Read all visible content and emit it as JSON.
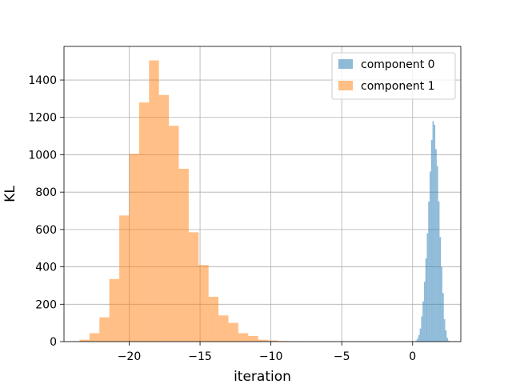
{
  "chart_data": {
    "type": "bar",
    "title": "",
    "xlabel": "iteration",
    "ylabel": "KL",
    "xlim": [
      -24.6,
      3.4
    ],
    "ylim": [
      0,
      1580
    ],
    "grid": true,
    "legend_position": "top-right",
    "xticks": [
      -20,
      -15,
      -10,
      -5,
      0
    ],
    "xtick_labels": [
      "−20",
      "−15",
      "−10",
      "−5",
      "0"
    ],
    "yticks": [
      0,
      200,
      400,
      600,
      800,
      1000,
      1200,
      1400
    ],
    "ytick_labels": [
      "0",
      "200",
      "400",
      "600",
      "800",
      "1000",
      "1200",
      "1400"
    ],
    "series": [
      {
        "name": "component 0",
        "color": "#1f77b4",
        "opacity": 0.5,
        "bins": [
          [
            0.2,
            0.3,
            5
          ],
          [
            0.3,
            0.4,
            15
          ],
          [
            0.4,
            0.5,
            35
          ],
          [
            0.5,
            0.6,
            70
          ],
          [
            0.6,
            0.7,
            135
          ],
          [
            0.7,
            0.8,
            215
          ],
          [
            0.8,
            0.9,
            320
          ],
          [
            0.9,
            1.0,
            445
          ],
          [
            1.0,
            1.1,
            580
          ],
          [
            1.1,
            1.2,
            750
          ],
          [
            1.2,
            1.3,
            910
          ],
          [
            1.3,
            1.4,
            1080
          ],
          [
            1.4,
            1.5,
            1180
          ],
          [
            1.5,
            1.6,
            1160
          ],
          [
            1.6,
            1.7,
            1030
          ],
          [
            1.7,
            1.8,
            940
          ],
          [
            1.8,
            1.9,
            750
          ],
          [
            1.9,
            2.0,
            560
          ],
          [
            2.0,
            2.1,
            400
          ],
          [
            2.1,
            2.2,
            260
          ],
          [
            2.2,
            2.3,
            120
          ],
          [
            2.3,
            2.4,
            60
          ],
          [
            2.4,
            2.5,
            20
          ],
          [
            2.5,
            2.6,
            5
          ]
        ]
      },
      {
        "name": "component 1",
        "color": "#ff7f0e",
        "opacity": 0.5,
        "bins": [
          [
            -23.5,
            -22.8,
            10
          ],
          [
            -22.8,
            -22.1,
            45
          ],
          [
            -22.1,
            -21.4,
            130
          ],
          [
            -21.4,
            -20.7,
            335
          ],
          [
            -20.7,
            -20.0,
            675
          ],
          [
            -20.0,
            -19.3,
            1005
          ],
          [
            -19.3,
            -18.6,
            1280
          ],
          [
            -18.6,
            -17.9,
            1505
          ],
          [
            -17.9,
            -17.2,
            1320
          ],
          [
            -17.2,
            -16.5,
            1155
          ],
          [
            -16.5,
            -15.8,
            925
          ],
          [
            -15.8,
            -15.1,
            585
          ],
          [
            -15.1,
            -14.4,
            410
          ],
          [
            -14.4,
            -13.7,
            240
          ],
          [
            -13.7,
            -13.0,
            140
          ],
          [
            -13.0,
            -12.3,
            100
          ],
          [
            -12.3,
            -11.6,
            45
          ],
          [
            -11.6,
            -10.9,
            30
          ],
          [
            -10.9,
            -10.2,
            10
          ],
          [
            -10.2,
            -9.5,
            6
          ],
          [
            -9.5,
            -8.8,
            3
          ],
          [
            -8.8,
            -8.1,
            2
          ],
          [
            -8.1,
            -7.4,
            1
          ]
        ]
      }
    ]
  }
}
